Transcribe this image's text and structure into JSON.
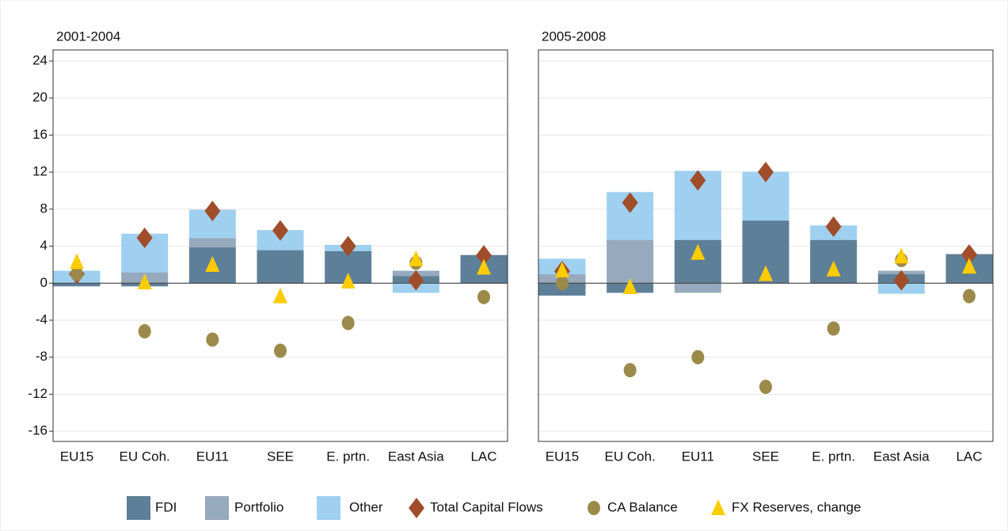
{
  "chart_data": [
    {
      "type": "bar",
      "title": "2001-2004",
      "categories": [
        "EU15",
        "EU Coh.",
        "EU11",
        "SEE",
        "E. prtn.",
        "East Asia",
        "LAC"
      ],
      "ylim": [
        -17.1,
        25.2
      ],
      "yticks": [
        24,
        20,
        16,
        12,
        8,
        4,
        0,
        -4,
        -8,
        -12,
        -16
      ],
      "grid": true,
      "series": [
        {
          "name": "FDI",
          "type": "bar",
          "color": "#5e7f98",
          "values": [
            -0.3,
            -0.3,
            3.9,
            3.6,
            3.5,
            0.8,
            3.0
          ]
        },
        {
          "name": "Portfolio",
          "type": "bar",
          "color": "#97a9bd",
          "values": [
            0,
            1.2,
            1.0,
            0,
            0,
            0.5,
            0
          ]
        },
        {
          "name": "Other",
          "type": "bar",
          "color": "#9fd0f0",
          "values": [
            1.3,
            4.1,
            3.0,
            2.1,
            0.6,
            -1.0,
            0
          ]
        },
        {
          "name": "Total Capital Flows",
          "type": "scatter",
          "marker": "diamond",
          "color": "#a04d2a",
          "values": [
            1.0,
            4.9,
            7.8,
            5.7,
            4.0,
            0.3,
            3.0
          ]
        },
        {
          "name": "CA Balance",
          "type": "scatter",
          "marker": "circle",
          "color": "#9b8a4a",
          "values": [
            1.0,
            -5.2,
            -6.1,
            -7.3,
            -4.3,
            2.2,
            -1.5
          ]
        },
        {
          "name": "FX Reserves, change",
          "type": "scatter",
          "marker": "triangle",
          "color": "#ffcc00",
          "values": [
            2.3,
            0.1,
            2.0,
            -1.4,
            0.2,
            2.6,
            1.7
          ]
        }
      ]
    },
    {
      "type": "bar",
      "title": "2005-2008",
      "categories": [
        "EU15",
        "EU Coh.",
        "EU11",
        "SEE",
        "E. prtn.",
        "East Asia",
        "LAC"
      ],
      "ylim": [
        -17.1,
        25.2
      ],
      "yticks": [
        24,
        20,
        16,
        12,
        8,
        4,
        0,
        -4,
        -8,
        -12,
        -16
      ],
      "grid": true,
      "series": [
        {
          "type": "bar",
          "color": "#5e7f98",
          "values": [
            -1.3,
            -1.0,
            4.7,
            6.8,
            4.7,
            1.0,
            3.1
          ]
        },
        {
          "type": "bar",
          "color": "#97a9bd",
          "values": [
            1.0,
            4.7,
            -1.0,
            0,
            0,
            0.3,
            0
          ]
        },
        {
          "type": "bar",
          "color": "#9fd0f0",
          "values": [
            1.6,
            5.1,
            7.4,
            5.2,
            1.5,
            -1.1,
            0
          ]
        },
        {
          "type": "scatter",
          "marker": "diamond",
          "color": "#a04d2a",
          "values": [
            1.3,
            8.7,
            11.1,
            12.0,
            6.1,
            0.3,
            3.1
          ]
        },
        {
          "type": "scatter",
          "marker": "circle",
          "color": "#9b8a4a",
          "values": [
            0,
            -9.4,
            -8.0,
            -11.2,
            -4.9,
            2.5,
            -1.4
          ]
        },
        {
          "type": "scatter",
          "marker": "triangle",
          "color": "#ffcc00",
          "values": [
            1.4,
            -0.4,
            3.3,
            1.0,
            1.5,
            2.9,
            1.8
          ]
        }
      ]
    }
  ]
}
